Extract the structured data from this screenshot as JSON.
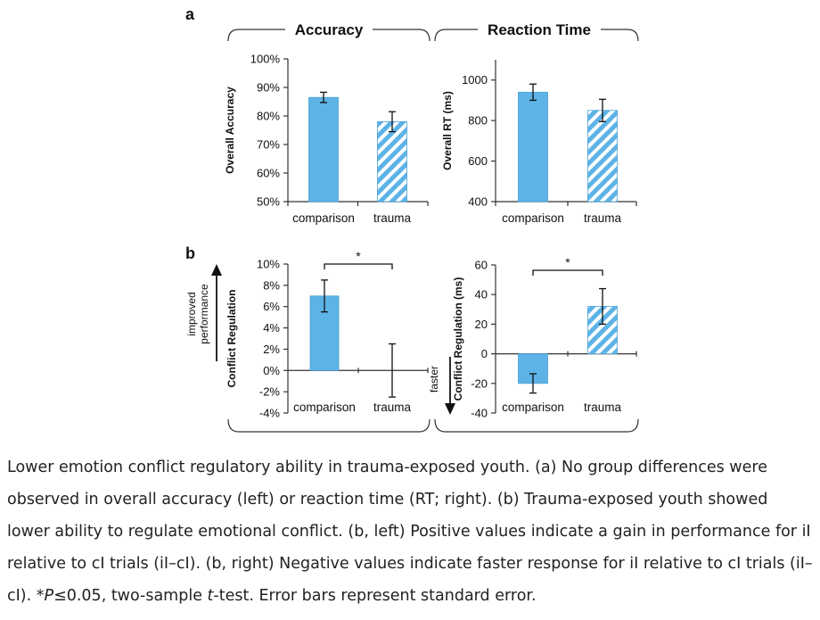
{
  "figure": {
    "panel_a_label": "a",
    "panel_b_label": "b",
    "header_accuracy": "Accuracy",
    "header_rt": "Reaction Time",
    "improved_label_1": "improved",
    "improved_label_2": "performance",
    "faster_label": "faster",
    "colors": {
      "bar_fill": "#5db3e6",
      "bar_stroke": "#4aa2d8",
      "hatch_bg": "#ffffff",
      "axis": "#333333",
      "text": "#111111"
    }
  },
  "chart_data": [
    {
      "id": "accuracy",
      "type": "bar",
      "ylabel": "Overall Accuracy",
      "categories": [
        "comparison",
        "trauma"
      ],
      "values": [
        86.5,
        78
      ],
      "errors": [
        1.8,
        3.5
      ],
      "patterns": [
        "solid",
        "hatched"
      ],
      "ylim": [
        50,
        100
      ],
      "ticks": [
        50,
        60,
        70,
        80,
        90,
        100
      ],
      "tick_labels": [
        "50%",
        "60%",
        "70%",
        "80%",
        "90%",
        "100%"
      ],
      "significance": null
    },
    {
      "id": "rt",
      "type": "bar",
      "ylabel": "Overall RT (ms)",
      "categories": [
        "comparison",
        "trauma"
      ],
      "values": [
        940,
        850
      ],
      "errors": [
        40,
        55
      ],
      "patterns": [
        "solid",
        "hatched"
      ],
      "ylim": [
        400,
        1100
      ],
      "ticks": [
        400,
        600,
        800,
        1000
      ],
      "tick_labels": [
        "400",
        "600",
        "800",
        "1000"
      ],
      "significance": null
    },
    {
      "id": "conflict",
      "type": "bar",
      "ylabel": "Conflict Regulation",
      "categories": [
        "comparison",
        "trauma"
      ],
      "values": [
        7,
        0
      ],
      "errors": [
        1.5,
        2.5
      ],
      "patterns": [
        "solid",
        "hatched"
      ],
      "ylim": [
        -4,
        10
      ],
      "ticks": [
        -4,
        -2,
        0,
        2,
        4,
        6,
        8,
        10
      ],
      "tick_labels": [
        "-4%",
        "-2%",
        "0%",
        "2%",
        "4%",
        "6%",
        "8%",
        "10%"
      ],
      "significance": "*"
    },
    {
      "id": "conflict_rt",
      "type": "bar",
      "ylabel": "Conflict Regulation (ms)",
      "categories": [
        "comparison",
        "trauma"
      ],
      "values": [
        -20,
        32
      ],
      "errors": [
        6.5,
        12
      ],
      "patterns": [
        "solid",
        "hatched"
      ],
      "ylim": [
        -40,
        60
      ],
      "ticks": [
        -40,
        -20,
        0,
        20,
        40,
        60
      ],
      "tick_labels": [
        "-40",
        "-20",
        "0",
        "20",
        "40",
        "60"
      ],
      "significance": "*"
    }
  ],
  "caption": {
    "text_1": "Lower emotion conflict regulatory ability in trauma-exposed youth. (a) No group differences were observed in overall accuracy (left) or reaction time (RT; right). (b) Trauma-exposed youth showed lower ability to regulate emotional conflict. (b, left) Positive values indicate a gain in performance for iI relative to cI trials (iI–cI). (b, right) Negative values indicate faster response for iI relative to cI trials (iI–cI). *",
    "p_symbol": "P",
    "text_2": "≤0.05, two-sample ",
    "t_symbol": "t",
    "text_3": "-test. Error bars represent standard error."
  }
}
